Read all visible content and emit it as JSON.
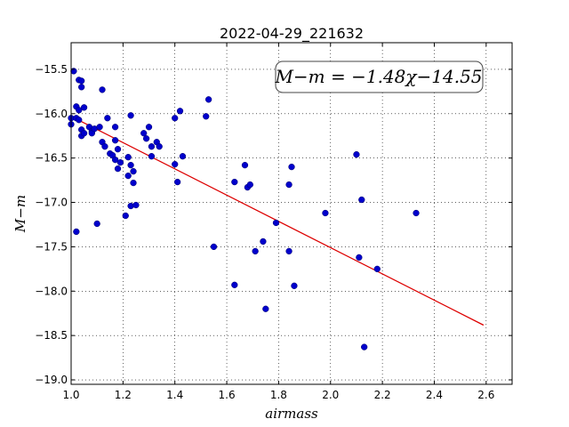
{
  "chart_data": {
    "type": "scatter",
    "title": "2022-04-29_221632",
    "xlabel": "airmass",
    "ylabel": "M−m",
    "xlim": [
      1.0,
      2.7
    ],
    "ylim": [
      -19.05,
      -15.2
    ],
    "xticks": [
      1.0,
      1.2,
      1.4,
      1.6,
      1.8,
      2.0,
      2.2,
      2.4,
      2.6
    ],
    "xtick_labels": [
      "1.0",
      "1.2",
      "1.4",
      "1.6",
      "1.8",
      "2.0",
      "2.2",
      "2.4",
      "2.6"
    ],
    "yticks": [
      -15.5,
      -16.0,
      -16.5,
      -17.0,
      -17.5,
      -18.0,
      -18.5,
      -19.0
    ],
    "ytick_labels": [
      "−15.5",
      "−16.0",
      "−16.5",
      "−17.0",
      "−17.5",
      "−18.0",
      "−18.5",
      "−19.0"
    ],
    "grid": true,
    "annotation": "M−m = −1.48χ−14.55",
    "annotation_placement": "top-right",
    "point_color": "#0000cc",
    "fit_color": "#dd0000",
    "fit": {
      "slope": -1.48,
      "intercept": -14.55,
      "x_range": [
        1.0,
        2.59
      ]
    },
    "x": [
      1.0,
      1.0,
      1.01,
      1.02,
      1.02,
      1.02,
      1.03,
      1.03,
      1.03,
      1.04,
      1.04,
      1.04,
      1.04,
      1.05,
      1.05,
      1.07,
      1.08,
      1.08,
      1.09,
      1.1,
      1.11,
      1.12,
      1.12,
      1.13,
      1.14,
      1.15,
      1.16,
      1.17,
      1.17,
      1.17,
      1.18,
      1.18,
      1.19,
      1.21,
      1.22,
      1.22,
      1.23,
      1.23,
      1.23,
      1.24,
      1.24,
      1.25,
      1.28,
      1.29,
      1.3,
      1.31,
      1.31,
      1.33,
      1.34,
      1.4,
      1.4,
      1.41,
      1.42,
      1.43,
      1.52,
      1.53,
      1.55,
      1.63,
      1.63,
      1.67,
      1.68,
      1.69,
      1.71,
      1.74,
      1.75,
      1.79,
      1.84,
      1.84,
      1.85,
      1.86,
      1.98,
      2.1,
      2.11,
      2.12,
      2.13,
      2.18,
      2.33
    ],
    "y": [
      -16.05,
      -16.12,
      -15.52,
      -16.05,
      -15.92,
      -17.33,
      -15.62,
      -15.96,
      -16.07,
      -15.63,
      -15.7,
      -16.18,
      -16.25,
      -15.93,
      -16.22,
      -16.15,
      -16.2,
      -16.22,
      -16.17,
      -17.24,
      -16.15,
      -15.73,
      -16.32,
      -16.37,
      -16.05,
      -16.45,
      -16.47,
      -16.15,
      -16.3,
      -16.52,
      -16.4,
      -16.62,
      -16.55,
      -17.15,
      -16.7,
      -16.49,
      -16.02,
      -16.58,
      -17.04,
      -16.78,
      -16.65,
      -17.03,
      -16.22,
      -16.28,
      -16.15,
      -16.37,
      -16.48,
      -16.32,
      -16.37,
      -16.05,
      -16.57,
      -16.77,
      -15.97,
      -16.48,
      -16.03,
      -15.84,
      -17.5,
      -17.93,
      -16.77,
      -16.58,
      -16.83,
      -16.8,
      -17.55,
      -17.44,
      -18.2,
      -17.23,
      -17.55,
      -16.8,
      -16.6,
      -17.94,
      -17.12,
      -16.46,
      -17.62,
      -16.97,
      -18.63,
      -17.75,
      -17.12
    ]
  }
}
